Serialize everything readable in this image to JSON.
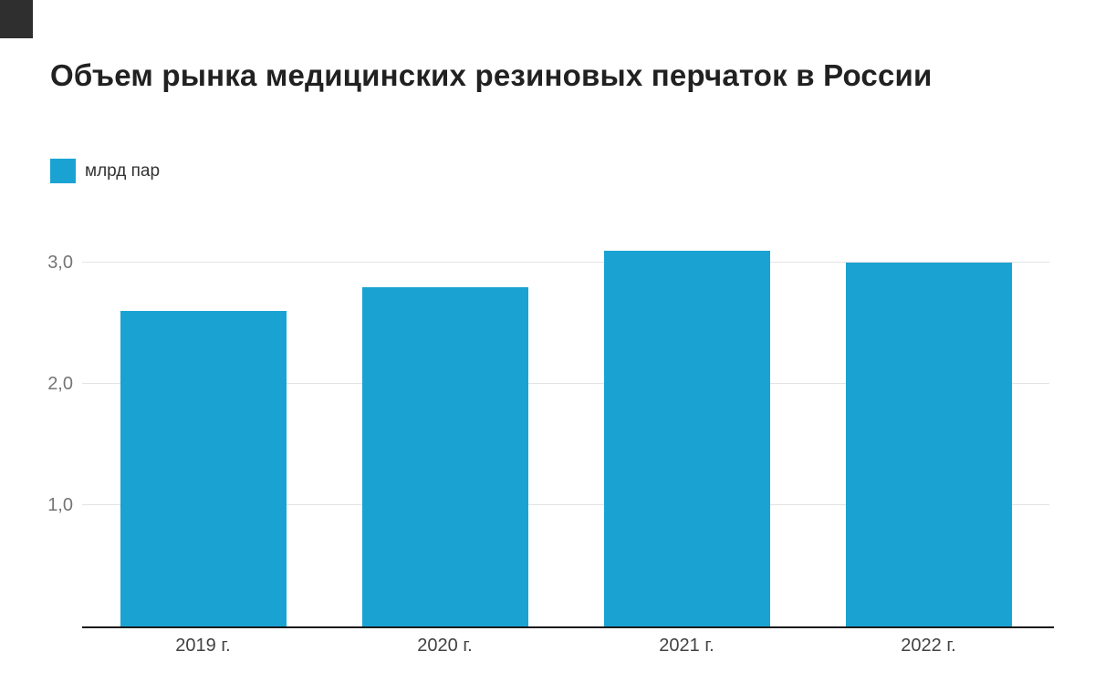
{
  "chart_data": {
    "type": "bar",
    "title": "Объем рынка медицинских резиновых перчаток в России",
    "legend": {
      "label": "млрд пар"
    },
    "categories": [
      "2019 г.",
      "2020 г.",
      "2021 г.",
      "2022 г."
    ],
    "values": [
      2.6,
      2.8,
      3.1,
      3.0
    ],
    "yticks": [
      {
        "value": 1.0,
        "label": "1,0"
      },
      {
        "value": 2.0,
        "label": "2,0"
      },
      {
        "value": 3.0,
        "label": "3,0"
      }
    ],
    "ylim": [
      0,
      3.36
    ],
    "grid": true,
    "legend_position": "top-left",
    "colors": {
      "bar": "#1aa3d2",
      "title_text": "#212121",
      "tick_text": "#757575",
      "category_text": "#424242",
      "gridline": "#e3e3e3",
      "axis_line": "#1a1a1a"
    }
  }
}
